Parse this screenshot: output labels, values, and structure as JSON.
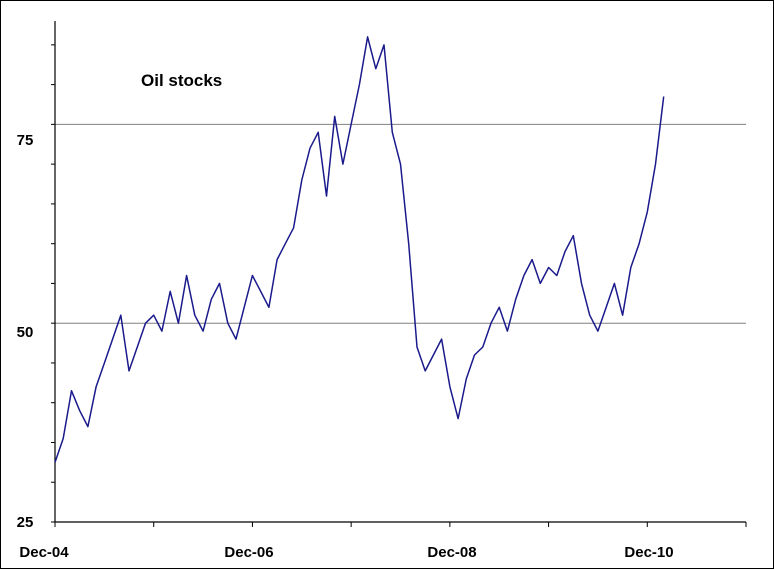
{
  "chart_data": {
    "type": "line",
    "title": "Oil stocks",
    "xlabel": "",
    "ylabel": "",
    "x_tick_labels": [
      "Dec-04",
      "Dec-06",
      "Dec-08",
      "Dec-10"
    ],
    "y_tick_labels": [
      "25",
      "50",
      "75"
    ],
    "ylim": [
      25,
      88
    ],
    "xlim": [
      "2004-12",
      "2011-12"
    ],
    "grid": "horizontal lines at 50 and 75",
    "legend": "none",
    "line_color": "#1a1a8c",
    "grid_color": "#808080",
    "series": [
      {
        "x": [
          "2004-12",
          "2005-01",
          "2005-02",
          "2005-03",
          "2005-04",
          "2005-05",
          "2005-06",
          "2005-07",
          "2005-08",
          "2005-09",
          "2005-10",
          "2005-11",
          "2005-12",
          "2006-01",
          "2006-02",
          "2006-03",
          "2006-04",
          "2006-05",
          "2006-06",
          "2006-07",
          "2006-08",
          "2006-09",
          "2006-10",
          "2006-11",
          "2006-12",
          "2007-01",
          "2007-02",
          "2007-03",
          "2007-04",
          "2007-05",
          "2007-06",
          "2007-07",
          "2007-08",
          "2007-09",
          "2007-10",
          "2007-11",
          "2007-12",
          "2008-01",
          "2008-02",
          "2008-03",
          "2008-04",
          "2008-05",
          "2008-06",
          "2008-07",
          "2008-08",
          "2008-09",
          "2008-10",
          "2008-11",
          "2008-12",
          "2009-01",
          "2009-02",
          "2009-03",
          "2009-04",
          "2009-05",
          "2009-06",
          "2009-07",
          "2009-08",
          "2009-09",
          "2009-10",
          "2009-11",
          "2009-12",
          "2010-01",
          "2010-02",
          "2010-03",
          "2010-04",
          "2010-05",
          "2010-06",
          "2010-07",
          "2010-08",
          "2010-09",
          "2010-10",
          "2010-11",
          "2010-12",
          "2011-01",
          "2011-02"
        ],
        "values": [
          32.5,
          35.5,
          41.5,
          39,
          37,
          42,
          45,
          48,
          51,
          44,
          47,
          50,
          51,
          49,
          54,
          50,
          56,
          51,
          49,
          53,
          55,
          50,
          48,
          52,
          56,
          54,
          52,
          58,
          60,
          62,
          68,
          72,
          74,
          66,
          76,
          70,
          75,
          80,
          86,
          82,
          85,
          74,
          70,
          60,
          47,
          44,
          46,
          48,
          42,
          38,
          43,
          46,
          47,
          50,
          52,
          49,
          53,
          56,
          58,
          55,
          57,
          56,
          59,
          61,
          55,
          51,
          49,
          52,
          55,
          51,
          57,
          60,
          64,
          70,
          78.5
        ]
      }
    ]
  }
}
